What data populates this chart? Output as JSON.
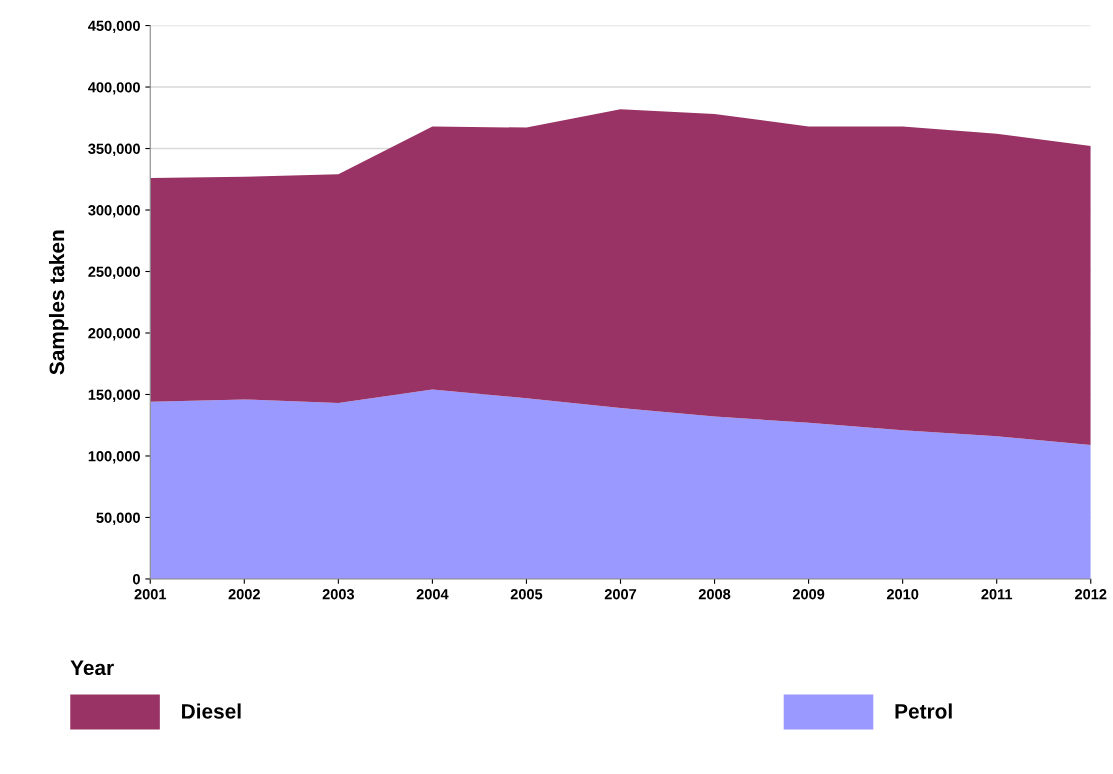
{
  "chart_data": {
    "type": "area",
    "stacked": true,
    "xlabel": "Year",
    "ylabel": "Samples taken",
    "categories": [
      "2001",
      "2002",
      "2003",
      "2004",
      "2005",
      "2007",
      "2008",
      "2009",
      "2010",
      "2011",
      "2012"
    ],
    "series": [
      {
        "name": "Petrol",
        "color": "#9999ff",
        "values": [
          144000,
          146000,
          143000,
          154000,
          147000,
          139000,
          132000,
          127000,
          121000,
          116000,
          109000
        ]
      },
      {
        "name": "Diesel",
        "color": "#993366",
        "values": [
          182000,
          181000,
          186000,
          214000,
          220000,
          243000,
          246000,
          241000,
          247000,
          246000,
          243000
        ]
      }
    ],
    "ylim": [
      0,
      450000
    ],
    "yticks": [
      0,
      {
        "value": 50000,
        "label": "50,000"
      },
      {
        "value": 100000,
        "label": "100,000"
      },
      {
        "value": 150000,
        "label": "150,000"
      },
      {
        "value": 200000,
        "label": "200,000"
      },
      {
        "value": 250000,
        "label": "250,000"
      },
      {
        "value": 300000,
        "label": "300,000"
      },
      {
        "value": 350000,
        "label": "350,000"
      },
      {
        "value": 400000,
        "label": "400,000"
      },
      {
        "value": 450000,
        "label": "450,000"
      }
    ],
    "grid": "y",
    "legend": "bottom"
  }
}
